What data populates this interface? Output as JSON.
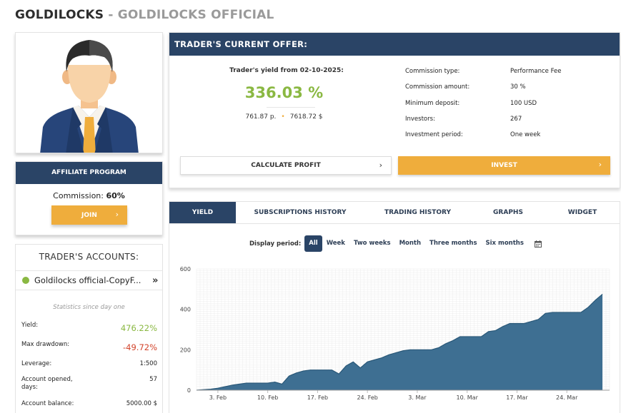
{
  "header": {
    "title": "GOLDILOCKS",
    "separator": " - ",
    "subtitle": "GOLDILOCKS OFFICIAL"
  },
  "affiliate": {
    "title": "AFFILIATE PROGRAM",
    "commission_label": "Commission:",
    "commission_value": "60%",
    "join_label": "JOIN"
  },
  "accounts": {
    "title": "TRADER'S ACCOUNTS:",
    "account_name": "Goldilocks official-CopyF...",
    "stats_since": "Statistics since day one",
    "stats": [
      {
        "label": "Yield:",
        "value": "476.22%"
      },
      {
        "label": "Max drawdown:",
        "value": "-49.72%"
      },
      {
        "label": "Leverage:",
        "value": "1:500"
      },
      {
        "label": "Account opened, days:",
        "value": "57"
      },
      {
        "label": "Account balance:",
        "value": "5000.00 $"
      }
    ]
  },
  "offer": {
    "title": "TRADER'S CURRENT OFFER:",
    "yield_from": "Trader's yield from 02-10-2025:",
    "yield_percent": "336.03 %",
    "points": "761.87 p.",
    "dollars": "7618.72 $",
    "terms": [
      {
        "label": "Commission type:",
        "value": "Performance Fee"
      },
      {
        "label": "Commission amount:",
        "value": "30 %"
      },
      {
        "label": "Minimum deposit:",
        "value": "100 USD"
      },
      {
        "label": "Investors:",
        "value": "267"
      },
      {
        "label": "Investment period:",
        "value": "One week"
      }
    ],
    "calculate_label": "CALCULATE PROFIT",
    "invest_label": "INVEST"
  },
  "tabs": [
    "YIELD",
    "SUBSCRIPTIONS HISTORY",
    "TRADING HISTORY",
    "GRAPHS",
    "WIDGET"
  ],
  "period": {
    "label": "Display period:",
    "options": [
      "All",
      "Week",
      "Two weeks",
      "Month",
      "Three months",
      "Six months"
    ]
  },
  "colors": {
    "navy": "#2a4466",
    "accent": "#efad3c",
    "positive": "#8ab842",
    "negative": "#d2432a",
    "area": "#3e6f92"
  },
  "chart_data": {
    "type": "area",
    "y_ticks": [
      0,
      200,
      400,
      600
    ],
    "ylim": [
      0,
      600
    ],
    "x_tick_labels": [
      "3. Feb",
      "10. Feb",
      "17. Feb",
      "24. Feb",
      "3. Mar",
      "10. Mar",
      "17. Mar",
      "24. Mar"
    ],
    "x_tick_days": [
      3,
      10,
      17,
      24,
      31,
      38,
      45,
      52
    ],
    "xlim_days": [
      0,
      58
    ],
    "grid": true,
    "series": [
      {
        "x_days": [
          0,
          2,
          3,
          5,
          6,
          7,
          8,
          9,
          10,
          11,
          12,
          13,
          14,
          15,
          16,
          17,
          18,
          19,
          20,
          21,
          22,
          23,
          24,
          25,
          26,
          27,
          28,
          29,
          30,
          31,
          32,
          33,
          34,
          35,
          36,
          37,
          38,
          39,
          40,
          41,
          42,
          43,
          44,
          45,
          46,
          47,
          48,
          49,
          50,
          51,
          52,
          53,
          54,
          55,
          56,
          57
        ],
        "y": [
          0,
          5,
          10,
          25,
          30,
          35,
          35,
          35,
          35,
          40,
          30,
          70,
          85,
          95,
          100,
          100,
          100,
          100,
          80,
          120,
          140,
          110,
          140,
          150,
          160,
          175,
          185,
          195,
          200,
          200,
          200,
          200,
          210,
          230,
          245,
          265,
          265,
          265,
          265,
          290,
          295,
          315,
          330,
          330,
          330,
          340,
          350,
          380,
          385,
          385,
          385,
          385,
          385,
          410,
          445,
          475
        ]
      }
    ]
  }
}
